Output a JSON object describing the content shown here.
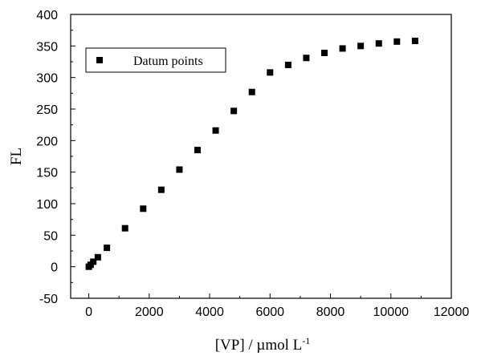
{
  "chart_data": {
    "type": "scatter",
    "xlabel": "[VP] / µmol L",
    "xlabel_superscript": "-1",
    "ylabel": "FL",
    "xlim": [
      -600,
      12000
    ],
    "ylim": [
      -50,
      400
    ],
    "xticks": [
      "0",
      "2000",
      "4000",
      "6000",
      "8000",
      "10000",
      "12000"
    ],
    "yticks": [
      "-50",
      "0",
      "50",
      "100",
      "150",
      "200",
      "250",
      "300",
      "350",
      "400"
    ],
    "grid": false,
    "legend_position": "top-left",
    "marker": "square",
    "marker_color": "#000000",
    "series": [
      {
        "name": "Datum points",
        "x": [
          0,
          60,
          150,
          300,
          600,
          1200,
          1800,
          2400,
          3000,
          3600,
          4200,
          4800,
          5400,
          6000,
          6600,
          7200,
          7800,
          8400,
          9000,
          9600,
          10200,
          10800
        ],
        "y": [
          0,
          3,
          8,
          15,
          30,
          61,
          92,
          122,
          154,
          185,
          216,
          247,
          277,
          308,
          320,
          331,
          339,
          346,
          350,
          354,
          357,
          358
        ]
      }
    ]
  }
}
